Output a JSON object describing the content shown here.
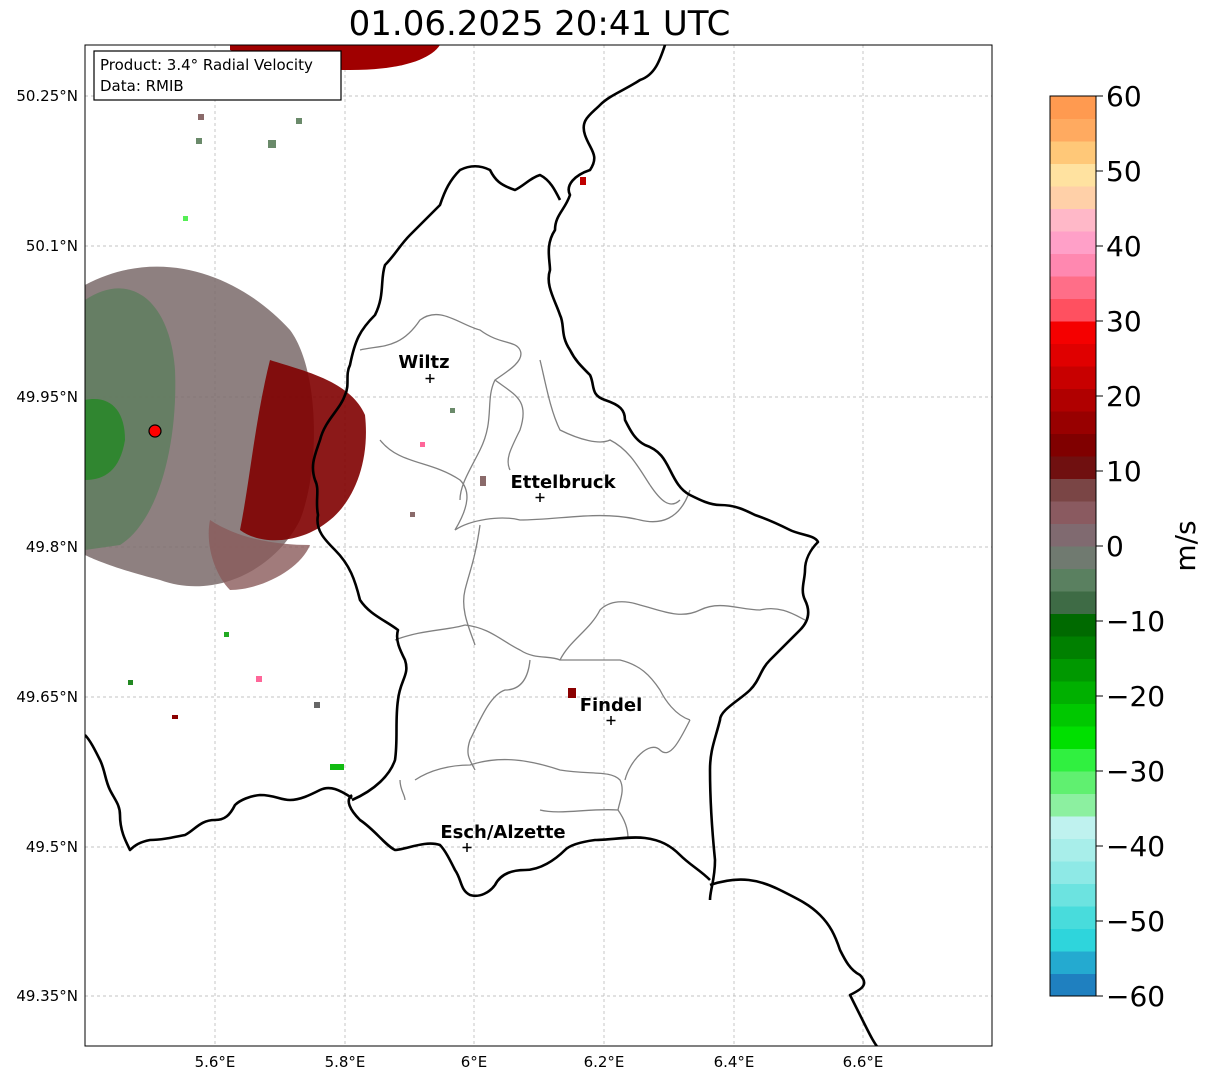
{
  "title": "01.06.2025 20:41 UTC",
  "info": {
    "product": "Product: 3.4° Radial Velocity",
    "data_source": "Data: RMIB"
  },
  "axes": {
    "lat_ticks": [
      "50.25°N",
      "50.1°N",
      "49.95°N",
      "49.8°N",
      "49.65°N",
      "49.5°N",
      "49.35°N"
    ],
    "lon_ticks": [
      "5.6°E",
      "5.8°E",
      "6°E",
      "6.2°E",
      "6.4°E",
      "6.6°E"
    ]
  },
  "cities": [
    {
      "name": "Wiltz"
    },
    {
      "name": "Ettelbruck"
    },
    {
      "name": "Findel"
    },
    {
      "name": "Esch/Alzette"
    }
  ],
  "colorbar": {
    "unit": "m/s",
    "ticks": [
      "60",
      "50",
      "40",
      "30",
      "20",
      "10",
      "0",
      "−10",
      "−20",
      "−30",
      "−40",
      "−50",
      "−60"
    ],
    "min": -60,
    "max": 60
  },
  "colors": {
    "radar_site": "#ff0000",
    "border": "#000000",
    "canton": "#808080",
    "grid": "#b0b0b0"
  }
}
